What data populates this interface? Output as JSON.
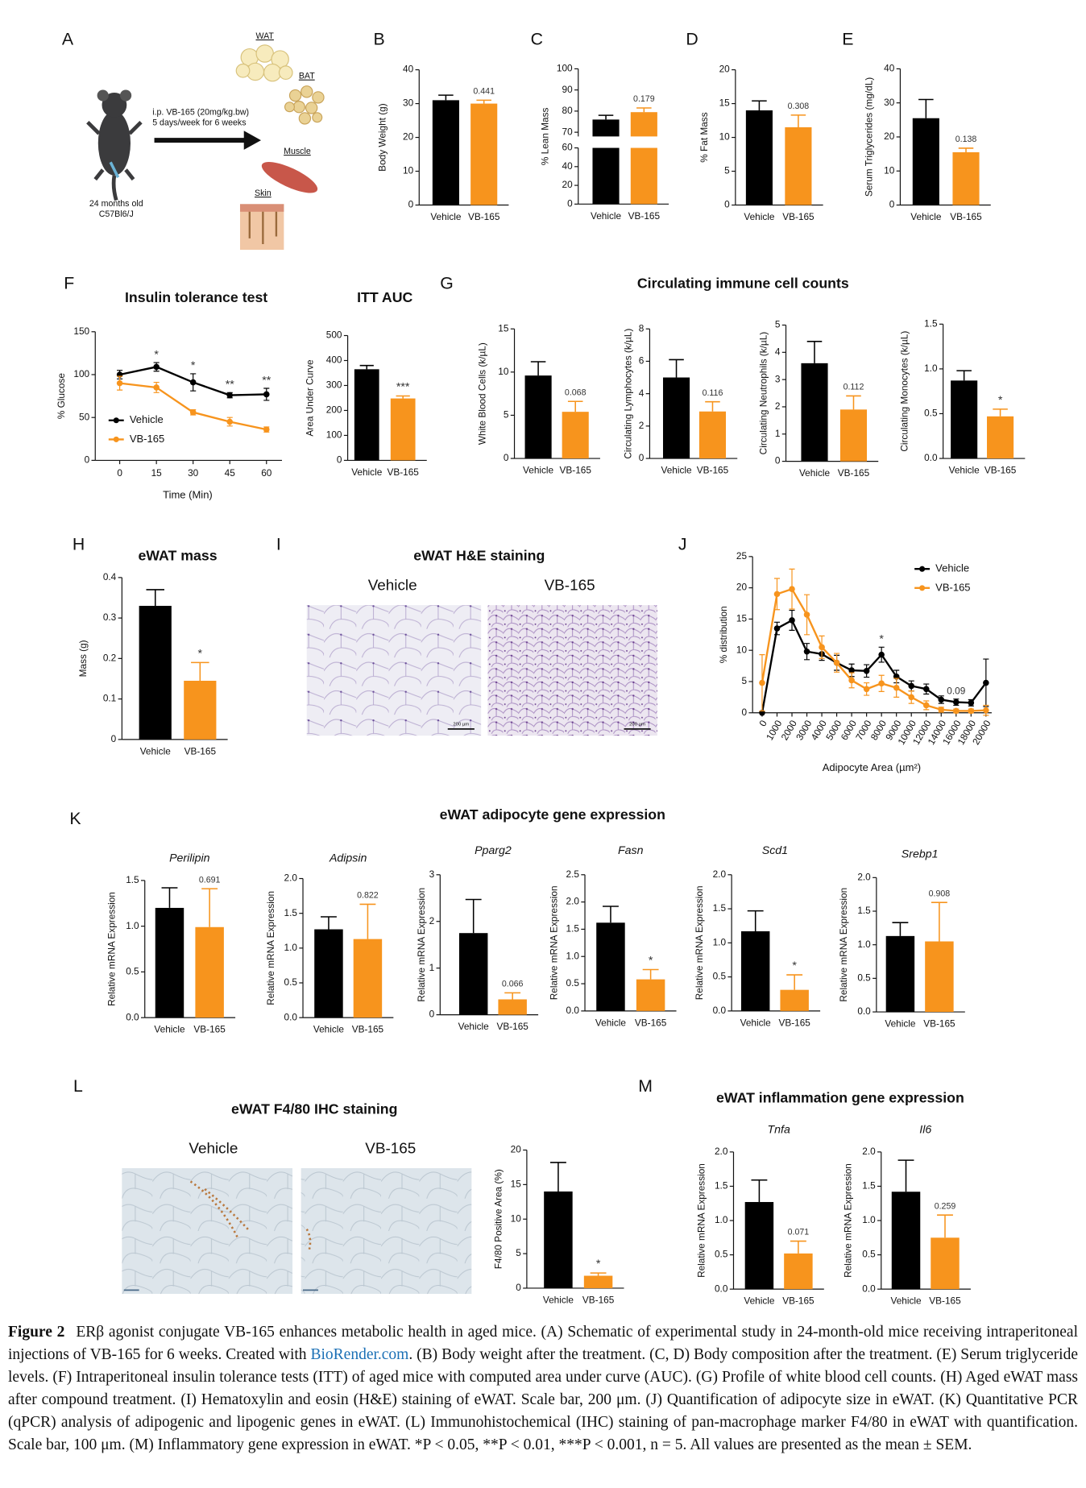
{
  "panel_labels": [
    "A",
    "B",
    "C",
    "D",
    "E",
    "F",
    "G",
    "H",
    "I",
    "J",
    "K",
    "L",
    "M"
  ],
  "schematic": {
    "tissues": [
      "WAT",
      "BAT",
      "Muscle",
      "Skin"
    ],
    "treatment": [
      "i.p. VB-165 (20mg/kg.bw)",
      "5 days/week for 6 weeks"
    ],
    "mice": [
      "24 months old",
      "C57Bl6/J"
    ]
  },
  "section_titles": [
    "Circulating immune cell counts",
    "eWAT H&E staining",
    "eWAT adipocyte gene expression",
    "eWAT F4/80 IHC staining",
    "eWAT inflammation gene expression"
  ],
  "micrographs": {
    "he": {
      "labels": [
        "Vehicle",
        "VB-165"
      ],
      "scale_bar": "200 µm"
    },
    "ihc": {
      "labels": [
        "Vehicle",
        "VB-165"
      ]
    }
  },
  "chart_data": [
    {
      "type": "bar",
      "ylabel": "Body Weight (g)",
      "categories": [
        "Vehicle",
        "VB-165"
      ],
      "values": [
        31,
        30
      ],
      "errors": [
        1.5,
        1
      ],
      "colors": [
        "#000000",
        "#f7941d"
      ],
      "ylim": [
        0,
        40
      ],
      "yticks": [
        0,
        10,
        20,
        30,
        40
      ],
      "annotation": "0.441"
    },
    {
      "type": "bar",
      "ylabel": "% Lean Mass",
      "categories": [
        "Vehicle",
        "VB-165"
      ],
      "values": [
        76,
        79.5
      ],
      "errors": [
        2,
        2
      ],
      "colors": [
        "#000000",
        "#f7941d"
      ],
      "segments": [
        {
          "ylim": [
            0,
            60
          ],
          "yticks": [
            0,
            20,
            40,
            60
          ]
        },
        {
          "ylim": [
            68,
            100
          ],
          "yticks": [
            70,
            80,
            90,
            100
          ]
        }
      ],
      "annotation": "0.179"
    },
    {
      "type": "bar",
      "ylabel": "% Fat Mass",
      "categories": [
        "Vehicle",
        "VB-165"
      ],
      "values": [
        14,
        11.5
      ],
      "errors": [
        1.4,
        1.8
      ],
      "colors": [
        "#000000",
        "#f7941d"
      ],
      "ylim": [
        0,
        20
      ],
      "yticks": [
        0,
        5,
        10,
        15,
        20
      ],
      "annotation": "0.308"
    },
    {
      "type": "bar",
      "ylabel": "Serum Triglycerides (mg/dL)",
      "categories": [
        "Vehicle",
        "VB-165"
      ],
      "values": [
        25.5,
        15.5
      ],
      "errors": [
        5.5,
        1.2
      ],
      "colors": [
        "#000000",
        "#f7941d"
      ],
      "ylim": [
        0,
        40
      ],
      "yticks": [
        0,
        10,
        20,
        30,
        40
      ],
      "annotation": "0.138"
    },
    {
      "type": "line",
      "title": "Insulin tolerance test",
      "xlabel": "Time (Min)",
      "ylabel": "% Glucose",
      "x": [
        0,
        15,
        30,
        45,
        60
      ],
      "xlim": [
        -10,
        64
      ],
      "xticks": [
        0,
        15,
        30,
        45,
        60
      ],
      "ylim": [
        0,
        150
      ],
      "yticks": [
        0,
        50,
        100,
        150
      ],
      "series": [
        {
          "name": "Vehicle",
          "color": "#000000",
          "values": [
            100,
            109,
            91,
            76,
            77
          ],
          "errors": [
            5,
            5,
            10,
            3,
            7
          ]
        },
        {
          "name": "VB-165",
          "color": "#f7941d",
          "values": [
            90,
            85,
            56,
            45,
            36
          ],
          "errors": [
            8,
            6,
            3,
            5,
            3
          ]
        }
      ],
      "annotations": [
        null,
        "*",
        "*",
        "**",
        "**"
      ],
      "legend": "lower left"
    },
    {
      "type": "bar",
      "title": "ITT AUC",
      "ylabel": "Area Under Curve",
      "categories": [
        "Vehicle",
        "VB-165"
      ],
      "values": [
        365,
        248
      ],
      "errors": [
        15,
        10
      ],
      "colors": [
        "#000000",
        "#f7941d"
      ],
      "ylim": [
        0,
        500
      ],
      "yticks": [
        0,
        100,
        200,
        300,
        400,
        500
      ],
      "annotation": "***"
    },
    {
      "type": "bar",
      "ylabel": "White Blood Cells (k/µL)",
      "categories": [
        "Vehicle",
        "VB-165"
      ],
      "values": [
        9.6,
        5.4
      ],
      "errors": [
        1.6,
        1.2
      ],
      "colors": [
        "#000000",
        "#f7941d"
      ],
      "ylim": [
        0,
        15
      ],
      "yticks": [
        0,
        5,
        10,
        15
      ],
      "annotation": "0.068"
    },
    {
      "type": "bar",
      "ylabel": "Circulating Lymphocytes (k/µL)",
      "categories": [
        "Vehicle",
        "VB-165"
      ],
      "values": [
        5.0,
        2.9
      ],
      "errors": [
        1.1,
        0.6
      ],
      "colors": [
        "#000000",
        "#f7941d"
      ],
      "ylim": [
        0,
        8
      ],
      "yticks": [
        0,
        2,
        4,
        6,
        8
      ],
      "annotation": "0.116"
    },
    {
      "type": "bar",
      "ylabel": "Circulating Neutrophils (k/µL)",
      "categories": [
        "Vehicle",
        "VB-165"
      ],
      "values": [
        3.6,
        1.9
      ],
      "errors": [
        0.8,
        0.5
      ],
      "colors": [
        "#000000",
        "#f7941d"
      ],
      "ylim": [
        0,
        5
      ],
      "yticks": [
        0,
        1,
        2,
        3,
        4,
        5
      ],
      "annotation": "0.112"
    },
    {
      "type": "bar",
      "ylabel": "Circulating Monocytes (k/µL)",
      "categories": [
        "Vehicle",
        "VB-165"
      ],
      "values": [
        0.87,
        0.47
      ],
      "errors": [
        0.11,
        0.08
      ],
      "colors": [
        "#000000",
        "#f7941d"
      ],
      "ylim": [
        0,
        1.5
      ],
      "yticks": [
        {
          "value": 0,
          "label": "0.0"
        },
        0.5,
        {
          "value": 1,
          "label": "1.0"
        },
        1.5
      ],
      "annotation": "*"
    },
    {
      "type": "bar",
      "title": "eWAT mass",
      "ylabel": "Mass (g)",
      "categories": [
        "Vehicle",
        "VB-165"
      ],
      "values": [
        0.33,
        0.145
      ],
      "errors": [
        0.04,
        0.045
      ],
      "colors": [
        "#000000",
        "#f7941d"
      ],
      "ylim": [
        0,
        0.4
      ],
      "yticks": [
        0,
        0.1,
        0.2,
        0.3,
        0.4
      ],
      "annotation": "*"
    },
    {
      "type": "line",
      "xlabel": "Adipocyte Area (µm²)",
      "ylabel": "% distribution",
      "categories": [
        "0",
        "1000",
        "2000",
        "3000",
        "4000",
        "5000",
        "6000",
        "7000",
        "8000",
        "9000",
        "10000",
        "12000",
        "14000",
        "16000",
        "18000",
        "20000"
      ],
      "ylim": [
        0,
        25
      ],
      "yticks": [
        0,
        5,
        10,
        15,
        20,
        25
      ],
      "series": [
        {
          "name": "Vehicle",
          "color": "#000000",
          "values": [
            0,
            13.5,
            14.8,
            9.8,
            9.4,
            8.0,
            6.8,
            6.7,
            9.3,
            5.8,
            4.3,
            3.8,
            2.1,
            1.7,
            1.6,
            4.8
          ],
          "errors": [
            0,
            1,
            1.6,
            1.3,
            1,
            1.2,
            1,
            1,
            1.2,
            1,
            0.8,
            0.8,
            0.6,
            0.5,
            0.5,
            3.8
          ]
        },
        {
          "name": "VB-165",
          "color": "#f7941d",
          "values": [
            4.8,
            19,
            19.8,
            15.7,
            10.5,
            8,
            5.2,
            3.8,
            4.7,
            4,
            2.5,
            1.2,
            0.5,
            0.3,
            0.3,
            0.4
          ],
          "errors": [
            4.5,
            2.5,
            3.2,
            3.2,
            1.8,
            1.5,
            1.2,
            1,
            1.3,
            1.5,
            1,
            0.7,
            0.4,
            0.3,
            0.3,
            0.8
          ]
        }
      ],
      "annotations": [
        null,
        null,
        null,
        null,
        null,
        null,
        null,
        null,
        "*",
        null,
        null,
        null,
        null,
        "0.09",
        null,
        null
      ],
      "legend": "upper right"
    },
    {
      "type": "bar",
      "title": "Perilipin",
      "ylabel": "Relative mRNA Expression",
      "categories": [
        "Vehicle",
        "VB-165"
      ],
      "values": [
        1.2,
        0.99
      ],
      "errors": [
        0.22,
        0.42
      ],
      "colors": [
        "#000000",
        "#f7941d"
      ],
      "ylim": [
        0,
        1.5
      ],
      "yticks": [
        {
          "value": 0,
          "label": "0.0"
        },
        0.5,
        {
          "value": 1,
          "label": "1.0"
        },
        1.5
      ],
      "annotation": "0.691"
    },
    {
      "type": "bar",
      "title": "Adipsin",
      "ylabel": "Relative mRNA Expression",
      "categories": [
        "Vehicle",
        "VB-165"
      ],
      "values": [
        1.27,
        1.13
      ],
      "errors": [
        0.18,
        0.5
      ],
      "colors": [
        "#000000",
        "#f7941d"
      ],
      "ylim": [
        0,
        2
      ],
      "yticks": [
        {
          "value": 0,
          "label": "0.0"
        },
        0.5,
        {
          "value": 1,
          "label": "1.0"
        },
        1.5,
        {
          "value": 2,
          "label": "2.0"
        }
      ],
      "annotation": "0.822"
    },
    {
      "type": "bar",
      "title": "Pparg2",
      "ylabel": "Relative mRNA Expression",
      "categories": [
        "Vehicle",
        "VB-165"
      ],
      "values": [
        1.75,
        0.33
      ],
      "errors": [
        0.72,
        0.14
      ],
      "colors": [
        "#000000",
        "#f7941d"
      ],
      "ylim": [
        0,
        3
      ],
      "yticks": [
        0,
        1,
        2,
        3
      ],
      "annotation": "0.066"
    },
    {
      "type": "bar",
      "title": "Fasn",
      "ylabel": "Relative mRNA Expression",
      "categories": [
        "Vehicle",
        "VB-165"
      ],
      "values": [
        1.62,
        0.58
      ],
      "errors": [
        0.3,
        0.18
      ],
      "colors": [
        "#000000",
        "#f7941d"
      ],
      "ylim": [
        0,
        2.5
      ],
      "yticks": [
        {
          "value": 0,
          "label": "0.0"
        },
        0.5,
        {
          "value": 1,
          "label": "1.0"
        },
        1.5,
        {
          "value": 2,
          "label": "2.0"
        },
        2.5
      ],
      "annotation": "*"
    },
    {
      "type": "bar",
      "title": "Scd1",
      "ylabel": "Relative mRNA Expression",
      "categories": [
        "Vehicle",
        "VB-165"
      ],
      "values": [
        1.17,
        0.31
      ],
      "errors": [
        0.3,
        0.22
      ],
      "colors": [
        "#000000",
        "#f7941d"
      ],
      "ylim": [
        0,
        2
      ],
      "yticks": [
        {
          "value": 0,
          "label": "0.0"
        },
        0.5,
        {
          "value": 1,
          "label": "1.0"
        },
        1.5,
        {
          "value": 2,
          "label": "2.0"
        }
      ],
      "annotation": "*"
    },
    {
      "type": "bar",
      "title": "Srebp1",
      "ylabel": "Relative mRNA Expression",
      "categories": [
        "Vehicle",
        "VB-165"
      ],
      "values": [
        1.13,
        1.05
      ],
      "errors": [
        0.2,
        0.58
      ],
      "colors": [
        "#000000",
        "#f7941d"
      ],
      "ylim": [
        0,
        2
      ],
      "yticks": [
        {
          "value": 0,
          "label": "0.0"
        },
        0.5,
        {
          "value": 1,
          "label": "1.0"
        },
        1.5,
        {
          "value": 2,
          "label": "2.0"
        }
      ],
      "annotation": "0.908"
    },
    {
      "type": "bar",
      "ylabel": "F4/80 Positive Area (%)",
      "categories": [
        "Vehicle",
        "VB-165"
      ],
      "values": [
        14,
        1.8
      ],
      "errors": [
        4.2,
        0.4
      ],
      "colors": [
        "#000000",
        "#f7941d"
      ],
      "ylim": [
        0,
        20
      ],
      "yticks": [
        0,
        5,
        10,
        15,
        20
      ],
      "annotation": "*"
    },
    {
      "type": "bar",
      "title": "Tnfa",
      "ylabel": "Relative mRNA Expression",
      "categories": [
        "Vehicle",
        "VB-165"
      ],
      "values": [
        1.27,
        0.52
      ],
      "errors": [
        0.32,
        0.18
      ],
      "colors": [
        "#000000",
        "#f7941d"
      ],
      "ylim": [
        0,
        2
      ],
      "yticks": [
        {
          "value": 0,
          "label": "0.0"
        },
        0.5,
        {
          "value": 1,
          "label": "1.0"
        },
        1.5,
        {
          "value": 2,
          "label": "2.0"
        }
      ],
      "annotation": "0.071"
    },
    {
      "type": "bar",
      "title": "Il6",
      "ylabel": "Relative mRNA Expression",
      "categories": [
        "Vehicle",
        "VB-165"
      ],
      "values": [
        1.42,
        0.75
      ],
      "errors": [
        0.46,
        0.33
      ],
      "colors": [
        "#000000",
        "#f7941d"
      ],
      "ylim": [
        0,
        2
      ],
      "yticks": [
        {
          "value": 0,
          "label": "0.0"
        },
        0.5,
        {
          "value": 1,
          "label": "1.0"
        },
        1.5,
        {
          "value": 2,
          "label": "2.0"
        }
      ],
      "annotation": "0.259"
    }
  ],
  "caption": {
    "label": "Figure 2",
    "text": "ERβ agonist conjugate VB-165 enhances metabolic health in aged mice. (A) Schematic of experimental study in 24-month-old mice receiving intraperitoneal injections of VB-165 for 6 weeks. Created with ",
    "link": "BioRender.com",
    "text_end": ". (B) Body weight after the treatment. (C, D) Body composition after the treatment. (E) Serum triglyceride levels. (F) Intraperitoneal insulin tolerance tests (ITT) of aged mice with computed area under curve (AUC). (G) Profile of white blood cell counts. (H) Aged eWAT mass after compound treatment. (I) Hematoxylin and eosin (H&E) staining of eWAT. Scale bar, 200 μm. (J) Quantification of adipocyte size in eWAT. (K) Quantitative PCR (qPCR) analysis of adipogenic and lipogenic genes in eWAT. (L) Immunohistochemical (IHC) staining of pan-macrophage marker F4/80 in eWAT with quantification. Scale bar, 100 μm. (M) Inflammatory gene expression in eWAT. *P < 0.05, **P < 0.01, ***P < 0.001, n = 5. All values are presented as the mean ± SEM."
  }
}
